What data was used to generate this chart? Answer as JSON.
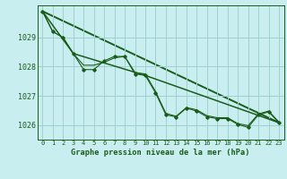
{
  "title": "Graphe pression niveau de la mer (hPa)",
  "background_color": "#c8eef0",
  "grid_color": "#a0d0d0",
  "line_color": "#1a5c1a",
  "xlim": [
    -0.5,
    23.5
  ],
  "ylim": [
    1025.5,
    1030.1
  ],
  "yticks": [
    1026,
    1027,
    1028,
    1029
  ],
  "xticks": [
    0,
    1,
    2,
    3,
    4,
    5,
    6,
    7,
    8,
    9,
    10,
    11,
    12,
    13,
    14,
    15,
    16,
    17,
    18,
    19,
    20,
    21,
    22,
    23
  ],
  "series1": [
    1029.9,
    1029.2,
    1029.0,
    1028.45,
    1027.9,
    1027.9,
    1028.2,
    1028.35,
    1028.35,
    1027.75,
    1027.7,
    1027.1,
    1026.35,
    1026.28,
    1026.58,
    1026.48,
    1026.28,
    1026.22,
    1026.22,
    1026.02,
    1025.92,
    1026.35,
    1026.45,
    1026.08
  ],
  "series2": [
    1029.9,
    1029.2,
    1029.0,
    1028.45,
    1028.05,
    1028.05,
    1028.15,
    1028.3,
    1028.35,
    1027.8,
    1027.75,
    1027.15,
    1026.4,
    1026.3,
    1026.6,
    1026.52,
    1026.32,
    1026.25,
    1026.25,
    1026.05,
    1025.98,
    1026.38,
    1026.48,
    1026.1
  ],
  "series3_x": [
    0,
    3,
    10,
    23
  ],
  "series3_y": [
    1029.9,
    1028.45,
    1027.7,
    1026.08
  ],
  "series4_x": [
    0,
    23
  ],
  "series4_y": [
    1029.9,
    1026.08
  ]
}
